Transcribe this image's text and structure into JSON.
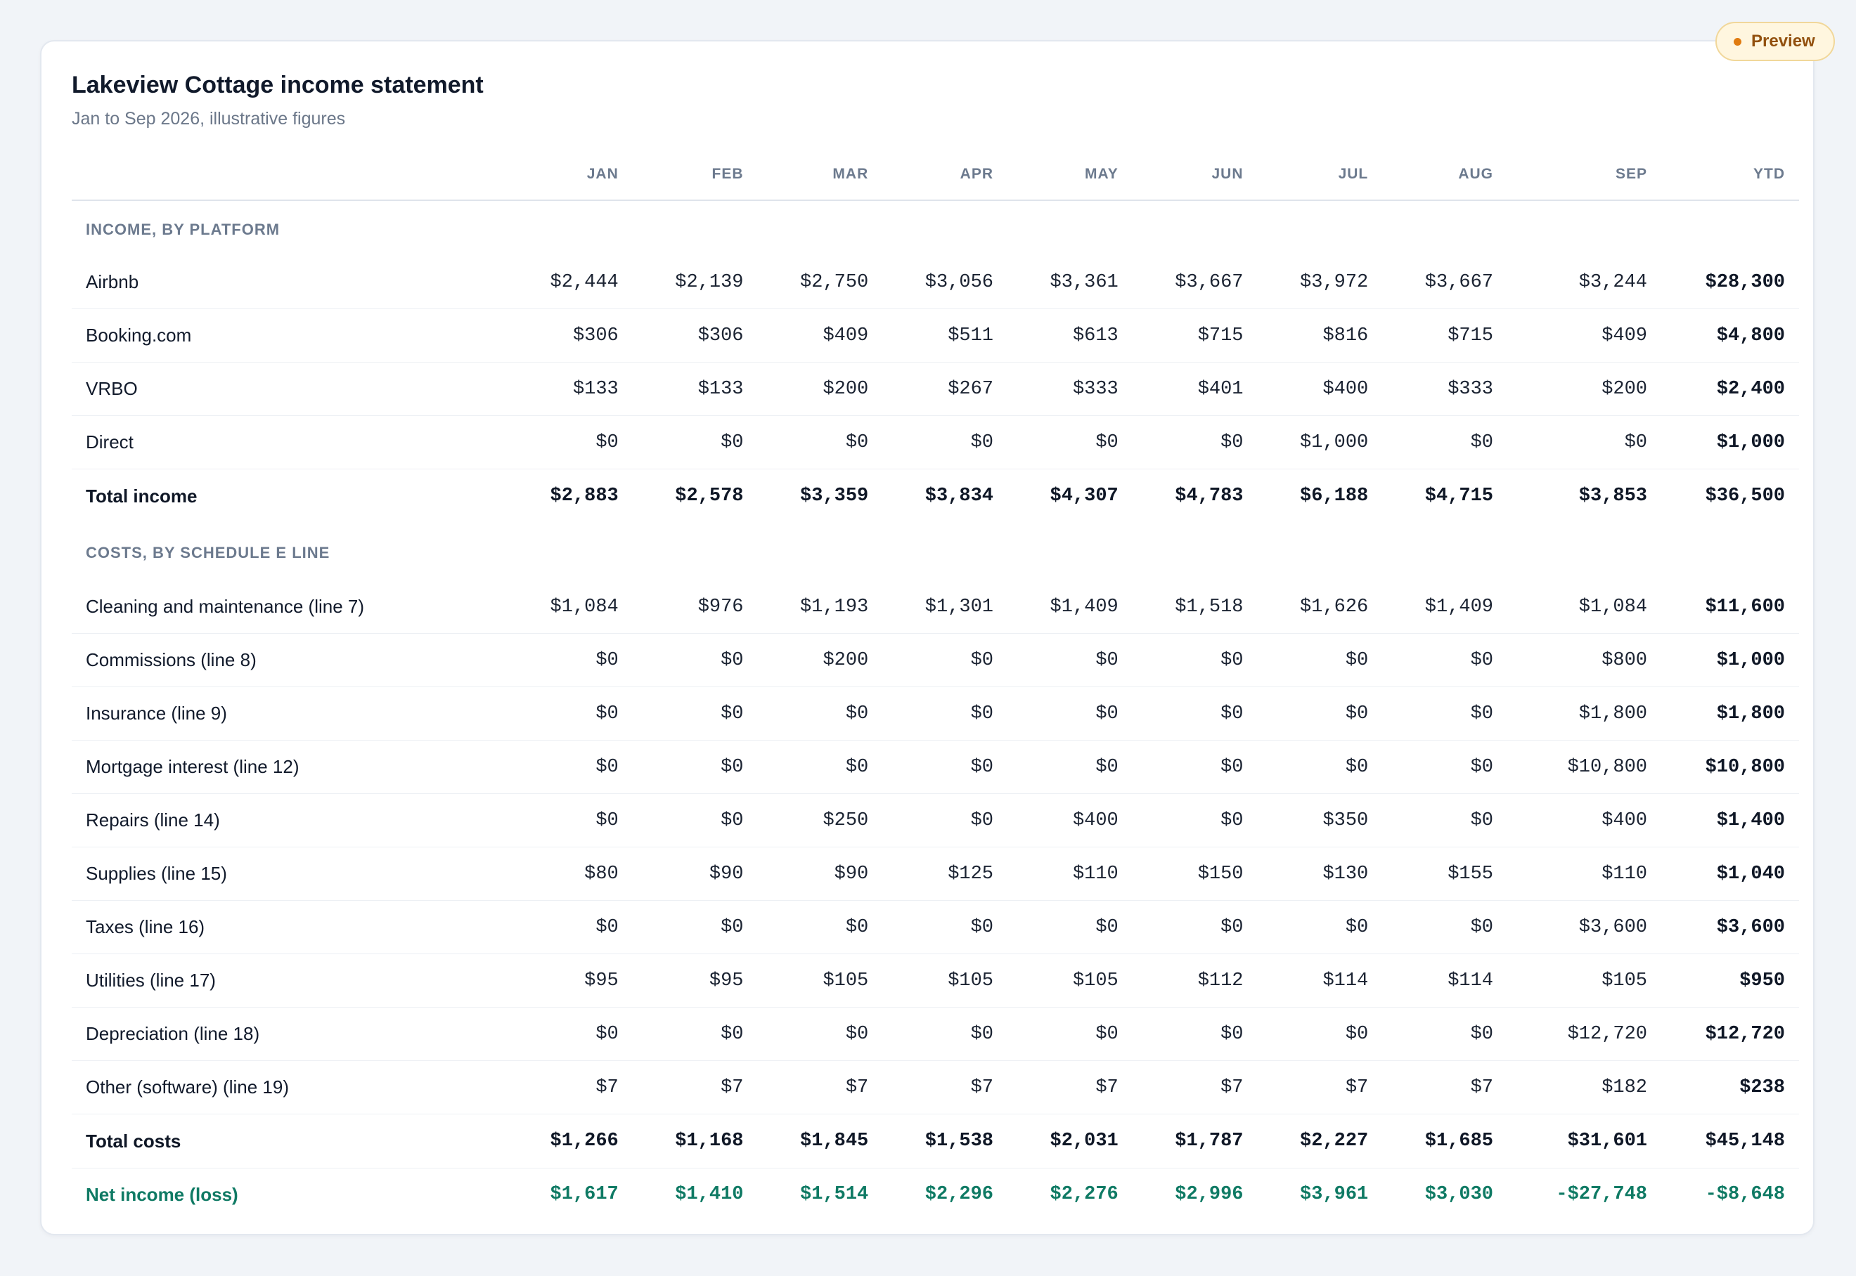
{
  "badge": {
    "label": "Preview"
  },
  "statement": {
    "title": "Lakeview Cottage income statement",
    "subtitle": "Jan to Sep 2026, illustrative figures"
  },
  "columns": [
    "JAN",
    "FEB",
    "MAR",
    "APR",
    "MAY",
    "JUN",
    "JUL",
    "AUG",
    "SEP",
    "YTD"
  ],
  "income": {
    "header": "INCOME, BY PLATFORM",
    "rows": [
      {
        "label": "Airbnb",
        "values": [
          "$2,444",
          "$2,139",
          "$2,750",
          "$3,056",
          "$3,361",
          "$3,667",
          "$3,972",
          "$3,667",
          "$3,244",
          "$28,300"
        ]
      },
      {
        "label": "Booking.com",
        "values": [
          "$306",
          "$306",
          "$409",
          "$511",
          "$613",
          "$715",
          "$816",
          "$715",
          "$409",
          "$4,800"
        ]
      },
      {
        "label": "VRBO",
        "values": [
          "$133",
          "$133",
          "$200",
          "$267",
          "$333",
          "$401",
          "$400",
          "$333",
          "$200",
          "$2,400"
        ]
      },
      {
        "label": "Direct",
        "values": [
          "$0",
          "$0",
          "$0",
          "$0",
          "$0",
          "$0",
          "$1,000",
          "$0",
          "$0",
          "$1,000"
        ]
      }
    ],
    "total": {
      "label": "Total income",
      "values": [
        "$2,883",
        "$2,578",
        "$3,359",
        "$3,834",
        "$4,307",
        "$4,783",
        "$6,188",
        "$4,715",
        "$3,853",
        "$36,500"
      ]
    }
  },
  "costs": {
    "header": "COSTS, BY SCHEDULE E LINE",
    "rows": [
      {
        "label": "Cleaning and maintenance (line 7)",
        "values": [
          "$1,084",
          "$976",
          "$1,193",
          "$1,301",
          "$1,409",
          "$1,518",
          "$1,626",
          "$1,409",
          "$1,084",
          "$11,600"
        ]
      },
      {
        "label": "Commissions (line 8)",
        "values": [
          "$0",
          "$0",
          "$200",
          "$0",
          "$0",
          "$0",
          "$0",
          "$0",
          "$800",
          "$1,000"
        ]
      },
      {
        "label": "Insurance (line 9)",
        "values": [
          "$0",
          "$0",
          "$0",
          "$0",
          "$0",
          "$0",
          "$0",
          "$0",
          "$1,800",
          "$1,800"
        ]
      },
      {
        "label": "Mortgage interest (line 12)",
        "values": [
          "$0",
          "$0",
          "$0",
          "$0",
          "$0",
          "$0",
          "$0",
          "$0",
          "$10,800",
          "$10,800"
        ]
      },
      {
        "label": "Repairs (line 14)",
        "values": [
          "$0",
          "$0",
          "$250",
          "$0",
          "$400",
          "$0",
          "$350",
          "$0",
          "$400",
          "$1,400"
        ]
      },
      {
        "label": "Supplies (line 15)",
        "values": [
          "$80",
          "$90",
          "$90",
          "$125",
          "$110",
          "$150",
          "$130",
          "$155",
          "$110",
          "$1,040"
        ]
      },
      {
        "label": "Taxes (line 16)",
        "values": [
          "$0",
          "$0",
          "$0",
          "$0",
          "$0",
          "$0",
          "$0",
          "$0",
          "$3,600",
          "$3,600"
        ]
      },
      {
        "label": "Utilities (line 17)",
        "values": [
          "$95",
          "$95",
          "$105",
          "$105",
          "$105",
          "$112",
          "$114",
          "$114",
          "$105",
          "$950"
        ]
      },
      {
        "label": "Depreciation (line 18)",
        "values": [
          "$0",
          "$0",
          "$0",
          "$0",
          "$0",
          "$0",
          "$0",
          "$0",
          "$12,720",
          "$12,720"
        ]
      },
      {
        "label": "Other (software) (line 19)",
        "values": [
          "$7",
          "$7",
          "$7",
          "$7",
          "$7",
          "$7",
          "$7",
          "$7",
          "$182",
          "$238"
        ]
      }
    ],
    "total": {
      "label": "Total costs",
      "values": [
        "$1,266",
        "$1,168",
        "$1,845",
        "$1,538",
        "$2,031",
        "$1,787",
        "$2,227",
        "$1,685",
        "$31,601",
        "$45,148"
      ]
    }
  },
  "net": {
    "label": "Net income (loss)",
    "values": [
      "$1,617",
      "$1,410",
      "$1,514",
      "$2,296",
      "$2,276",
      "$2,996",
      "$3,961",
      "$3,030",
      "-$27,748",
      "-$8,648"
    ]
  },
  "colors": {
    "accent_net": "#0f7a64",
    "badge_dot": "#e07b10",
    "badge_bg": "#fff6df"
  }
}
